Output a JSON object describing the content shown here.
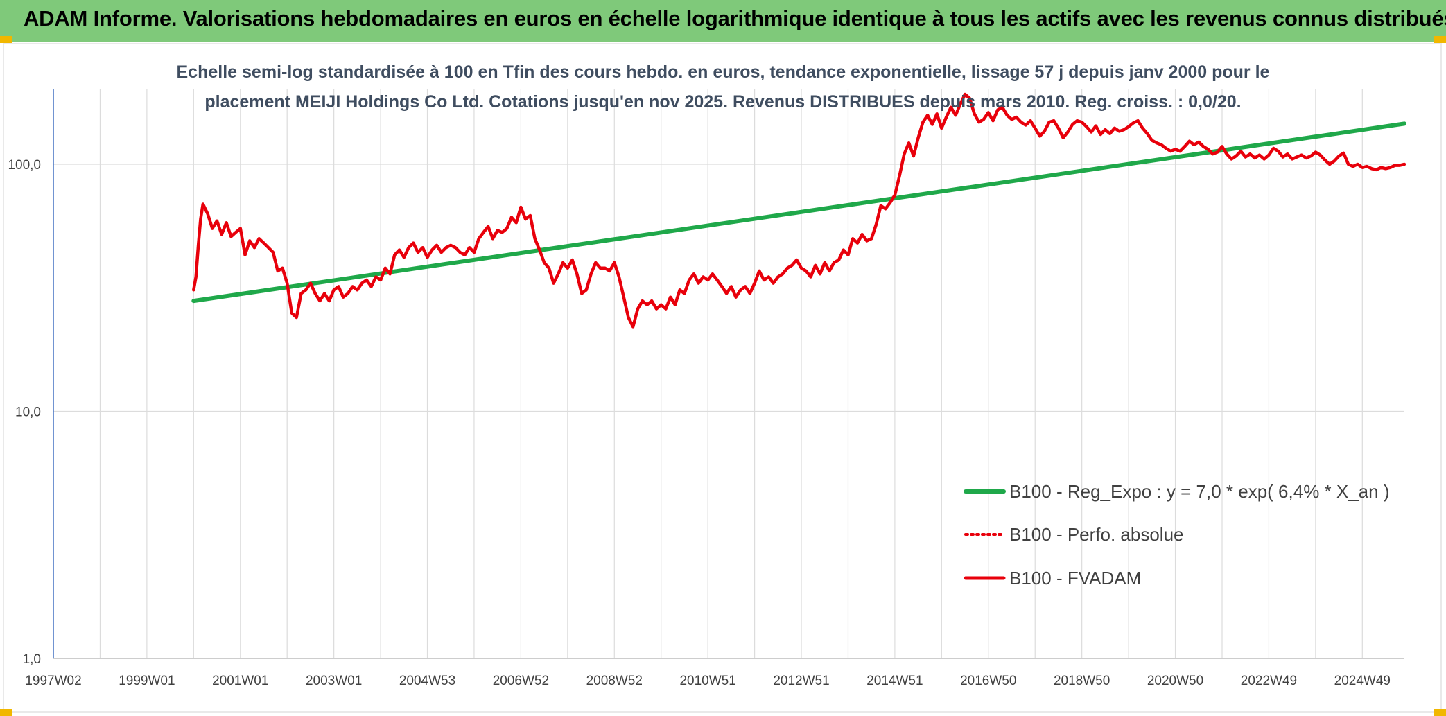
{
  "header": {
    "title": "ADAM Informe. Valorisations hebdomadaires en euros en échelle logarithmique identique à tous les actifs avec les revenus connus distribués"
  },
  "chart_data": {
    "type": "line",
    "title_lines": [
      "Echelle semi-log standardisée à 100 en Tfin des cours hebdo. en euros, tendance exponentielle, lissage 57 j depuis janv 2000 pour le",
      "placement MEIJI Holdings Co Ltd. Cotations jusqu'en nov 2025. Revenus DISTRIBUES depuis mars 2010. Reg. croiss. : 0,0/20."
    ],
    "y_scale": "log",
    "ylim": [
      1,
      200
    ],
    "xlim": [
      1997.0,
      2025.9
    ],
    "y_ticks": [
      {
        "value": 1,
        "label": "1,0"
      },
      {
        "value": 10,
        "label": "10,0"
      },
      {
        "value": 100,
        "label": "100,0"
      }
    ],
    "x_ticks": [
      {
        "value": 1997.0,
        "label": "1997W02"
      },
      {
        "value": 1999.0,
        "label": "1999W01"
      },
      {
        "value": 2001.0,
        "label": "2001W01"
      },
      {
        "value": 2003.0,
        "label": "2003W01"
      },
      {
        "value": 2005.0,
        "label": "2004W53"
      },
      {
        "value": 2007.0,
        "label": "2006W52"
      },
      {
        "value": 2009.0,
        "label": "2008W52"
      },
      {
        "value": 2011.0,
        "label": "2010W51"
      },
      {
        "value": 2013.0,
        "label": "2012W51"
      },
      {
        "value": 2015.0,
        "label": "2014W51"
      },
      {
        "value": 2017.0,
        "label": "2016W50"
      },
      {
        "value": 2019.0,
        "label": "2018W50"
      },
      {
        "value": 2021.0,
        "label": "2020W50"
      },
      {
        "value": 2023.0,
        "label": "2022W49"
      },
      {
        "value": 2025.0,
        "label": "2024W49"
      }
    ],
    "grid": "vertical and horizontal",
    "legend_position": "bottom-right",
    "series": [
      {
        "name": "B100 - Reg_Expo : y = 7,0 * exp( 6,4% *  X_an )",
        "color": "#1fa84a",
        "style": "solid",
        "points": [
          [
            2000.0,
            28.0
          ],
          [
            2025.9,
            146.0
          ]
        ]
      },
      {
        "name": "B100 - Perfo. absolue",
        "color": "#e8000b",
        "style": "dotted",
        "points": []
      },
      {
        "name": "B100 - FVADAM",
        "color": "#e8000b",
        "style": "solid",
        "points": [
          [
            2000.0,
            31
          ],
          [
            2000.05,
            35
          ],
          [
            2000.1,
            47
          ],
          [
            2000.15,
            60
          ],
          [
            2000.2,
            69
          ],
          [
            2000.3,
            63
          ],
          [
            2000.4,
            55
          ],
          [
            2000.5,
            59
          ],
          [
            2000.6,
            52
          ],
          [
            2000.7,
            58
          ],
          [
            2000.8,
            51
          ],
          [
            2000.9,
            53
          ],
          [
            2001.0,
            55
          ],
          [
            2001.1,
            43
          ],
          [
            2001.2,
            49
          ],
          [
            2001.3,
            46
          ],
          [
            2001.4,
            50
          ],
          [
            2001.5,
            48
          ],
          [
            2001.6,
            46
          ],
          [
            2001.7,
            44
          ],
          [
            2001.8,
            37
          ],
          [
            2001.9,
            38
          ],
          [
            2002.0,
            33
          ],
          [
            2002.1,
            25
          ],
          [
            2002.2,
            24
          ],
          [
            2002.3,
            30
          ],
          [
            2002.4,
            31
          ],
          [
            2002.5,
            33
          ],
          [
            2002.6,
            30
          ],
          [
            2002.7,
            28
          ],
          [
            2002.8,
            30
          ],
          [
            2002.9,
            28
          ],
          [
            2003.0,
            31
          ],
          [
            2003.1,
            32
          ],
          [
            2003.2,
            29
          ],
          [
            2003.3,
            30
          ],
          [
            2003.4,
            32
          ],
          [
            2003.5,
            31
          ],
          [
            2003.6,
            33
          ],
          [
            2003.7,
            34
          ],
          [
            2003.8,
            32
          ],
          [
            2003.9,
            35
          ],
          [
            2004.0,
            34
          ],
          [
            2004.1,
            38
          ],
          [
            2004.2,
            36
          ],
          [
            2004.3,
            43
          ],
          [
            2004.4,
            45
          ],
          [
            2004.5,
            42
          ],
          [
            2004.6,
            46
          ],
          [
            2004.7,
            48
          ],
          [
            2004.8,
            44
          ],
          [
            2004.9,
            46
          ],
          [
            2005.0,
            42
          ],
          [
            2005.1,
            45
          ],
          [
            2005.2,
            47
          ],
          [
            2005.3,
            44
          ],
          [
            2005.4,
            46
          ],
          [
            2005.5,
            47
          ],
          [
            2005.6,
            46
          ],
          [
            2005.7,
            44
          ],
          [
            2005.8,
            43
          ],
          [
            2005.9,
            46
          ],
          [
            2006.0,
            44
          ],
          [
            2006.1,
            50
          ],
          [
            2006.2,
            53
          ],
          [
            2006.3,
            56
          ],
          [
            2006.4,
            50
          ],
          [
            2006.5,
            54
          ],
          [
            2006.6,
            53
          ],
          [
            2006.7,
            55
          ],
          [
            2006.8,
            61
          ],
          [
            2006.9,
            58
          ],
          [
            2007.0,
            67
          ],
          [
            2007.1,
            60
          ],
          [
            2007.2,
            62
          ],
          [
            2007.3,
            50
          ],
          [
            2007.4,
            45
          ],
          [
            2007.5,
            40
          ],
          [
            2007.6,
            38
          ],
          [
            2007.7,
            33
          ],
          [
            2007.8,
            36
          ],
          [
            2007.9,
            40
          ],
          [
            2008.0,
            38
          ],
          [
            2008.1,
            41
          ],
          [
            2008.2,
            36
          ],
          [
            2008.3,
            30
          ],
          [
            2008.4,
            31
          ],
          [
            2008.5,
            36
          ],
          [
            2008.6,
            40
          ],
          [
            2008.7,
            38
          ],
          [
            2008.8,
            38
          ],
          [
            2008.9,
            37
          ],
          [
            2009.0,
            40
          ],
          [
            2009.1,
            35
          ],
          [
            2009.2,
            29
          ],
          [
            2009.3,
            24
          ],
          [
            2009.4,
            22
          ],
          [
            2009.5,
            26
          ],
          [
            2009.6,
            28
          ],
          [
            2009.7,
            27
          ],
          [
            2009.8,
            28
          ],
          [
            2009.9,
            26
          ],
          [
            2010.0,
            27
          ],
          [
            2010.1,
            26
          ],
          [
            2010.2,
            29
          ],
          [
            2010.3,
            27
          ],
          [
            2010.4,
            31
          ],
          [
            2010.5,
            30
          ],
          [
            2010.6,
            34
          ],
          [
            2010.7,
            36
          ],
          [
            2010.8,
            33
          ],
          [
            2010.9,
            35
          ],
          [
            2011.0,
            34
          ],
          [
            2011.1,
            36
          ],
          [
            2011.2,
            34
          ],
          [
            2011.3,
            32
          ],
          [
            2011.4,
            30
          ],
          [
            2011.5,
            32
          ],
          [
            2011.6,
            29
          ],
          [
            2011.7,
            31
          ],
          [
            2011.8,
            32
          ],
          [
            2011.9,
            30
          ],
          [
            2012.0,
            33
          ],
          [
            2012.1,
            37
          ],
          [
            2012.2,
            34
          ],
          [
            2012.3,
            35
          ],
          [
            2012.4,
            33
          ],
          [
            2012.5,
            35
          ],
          [
            2012.6,
            36
          ],
          [
            2012.7,
            38
          ],
          [
            2012.8,
            39
          ],
          [
            2012.9,
            41
          ],
          [
            2013.0,
            38
          ],
          [
            2013.1,
            37
          ],
          [
            2013.2,
            35
          ],
          [
            2013.3,
            39
          ],
          [
            2013.4,
            36
          ],
          [
            2013.5,
            40
          ],
          [
            2013.6,
            37
          ],
          [
            2013.7,
            40
          ],
          [
            2013.8,
            41
          ],
          [
            2013.9,
            45
          ],
          [
            2014.0,
            43
          ],
          [
            2014.1,
            50
          ],
          [
            2014.2,
            48
          ],
          [
            2014.3,
            52
          ],
          [
            2014.4,
            49
          ],
          [
            2014.5,
            50
          ],
          [
            2014.6,
            57
          ],
          [
            2014.7,
            68
          ],
          [
            2014.8,
            66
          ],
          [
            2014.9,
            70
          ],
          [
            2015.0,
            75
          ],
          [
            2015.1,
            90
          ],
          [
            2015.2,
            110
          ],
          [
            2015.3,
            122
          ],
          [
            2015.4,
            108
          ],
          [
            2015.5,
            128
          ],
          [
            2015.6,
            148
          ],
          [
            2015.7,
            158
          ],
          [
            2015.8,
            145
          ],
          [
            2015.9,
            160
          ],
          [
            2016.0,
            140
          ],
          [
            2016.1,
            155
          ],
          [
            2016.2,
            170
          ],
          [
            2016.3,
            158
          ],
          [
            2016.4,
            175
          ],
          [
            2016.5,
            192
          ],
          [
            2016.6,
            185
          ],
          [
            2016.7,
            160
          ],
          [
            2016.8,
            148
          ],
          [
            2016.9,
            152
          ],
          [
            2017.0,
            162
          ],
          [
            2017.1,
            150
          ],
          [
            2017.2,
            166
          ],
          [
            2017.3,
            170
          ],
          [
            2017.4,
            158
          ],
          [
            2017.5,
            152
          ],
          [
            2017.6,
            155
          ],
          [
            2017.7,
            148
          ],
          [
            2017.8,
            144
          ],
          [
            2017.9,
            150
          ],
          [
            2018.0,
            140
          ],
          [
            2018.1,
            130
          ],
          [
            2018.2,
            136
          ],
          [
            2018.3,
            148
          ],
          [
            2018.4,
            150
          ],
          [
            2018.5,
            140
          ],
          [
            2018.6,
            128
          ],
          [
            2018.7,
            135
          ],
          [
            2018.8,
            145
          ],
          [
            2018.9,
            150
          ],
          [
            2019.0,
            148
          ],
          [
            2019.1,
            142
          ],
          [
            2019.2,
            135
          ],
          [
            2019.3,
            143
          ],
          [
            2019.4,
            132
          ],
          [
            2019.5,
            138
          ],
          [
            2019.6,
            133
          ],
          [
            2019.7,
            140
          ],
          [
            2019.8,
            136
          ],
          [
            2019.9,
            138
          ],
          [
            2020.0,
            142
          ],
          [
            2020.1,
            147
          ],
          [
            2020.2,
            150
          ],
          [
            2020.3,
            140
          ],
          [
            2020.4,
            133
          ],
          [
            2020.5,
            125
          ],
          [
            2020.6,
            122
          ],
          [
            2020.7,
            120
          ],
          [
            2020.8,
            116
          ],
          [
            2020.9,
            113
          ],
          [
            2021.0,
            115
          ],
          [
            2021.1,
            113
          ],
          [
            2021.2,
            118
          ],
          [
            2021.3,
            124
          ],
          [
            2021.4,
            120
          ],
          [
            2021.5,
            123
          ],
          [
            2021.6,
            118
          ],
          [
            2021.7,
            115
          ],
          [
            2021.8,
            110
          ],
          [
            2021.9,
            112
          ],
          [
            2022.0,
            118
          ],
          [
            2022.1,
            110
          ],
          [
            2022.2,
            105
          ],
          [
            2022.3,
            108
          ],
          [
            2022.4,
            113
          ],
          [
            2022.5,
            107
          ],
          [
            2022.6,
            110
          ],
          [
            2022.7,
            106
          ],
          [
            2022.8,
            109
          ],
          [
            2022.9,
            105
          ],
          [
            2023.0,
            109
          ],
          [
            2023.1,
            116
          ],
          [
            2023.2,
            113
          ],
          [
            2023.3,
            107
          ],
          [
            2023.4,
            110
          ],
          [
            2023.5,
            105
          ],
          [
            2023.6,
            107
          ],
          [
            2023.7,
            109
          ],
          [
            2023.8,
            106
          ],
          [
            2023.9,
            108
          ],
          [
            2024.0,
            112
          ],
          [
            2024.1,
            109
          ],
          [
            2024.2,
            104
          ],
          [
            2024.3,
            100
          ],
          [
            2024.4,
            103
          ],
          [
            2024.5,
            108
          ],
          [
            2024.6,
            111
          ],
          [
            2024.7,
            100
          ],
          [
            2024.8,
            98
          ],
          [
            2024.9,
            100
          ],
          [
            2025.0,
            97
          ],
          [
            2025.1,
            98
          ],
          [
            2025.2,
            96
          ],
          [
            2025.3,
            95
          ],
          [
            2025.4,
            97
          ],
          [
            2025.5,
            96
          ],
          [
            2025.6,
            97
          ],
          [
            2025.7,
            99
          ],
          [
            2025.8,
            99
          ],
          [
            2025.9,
            100
          ]
        ]
      }
    ]
  }
}
